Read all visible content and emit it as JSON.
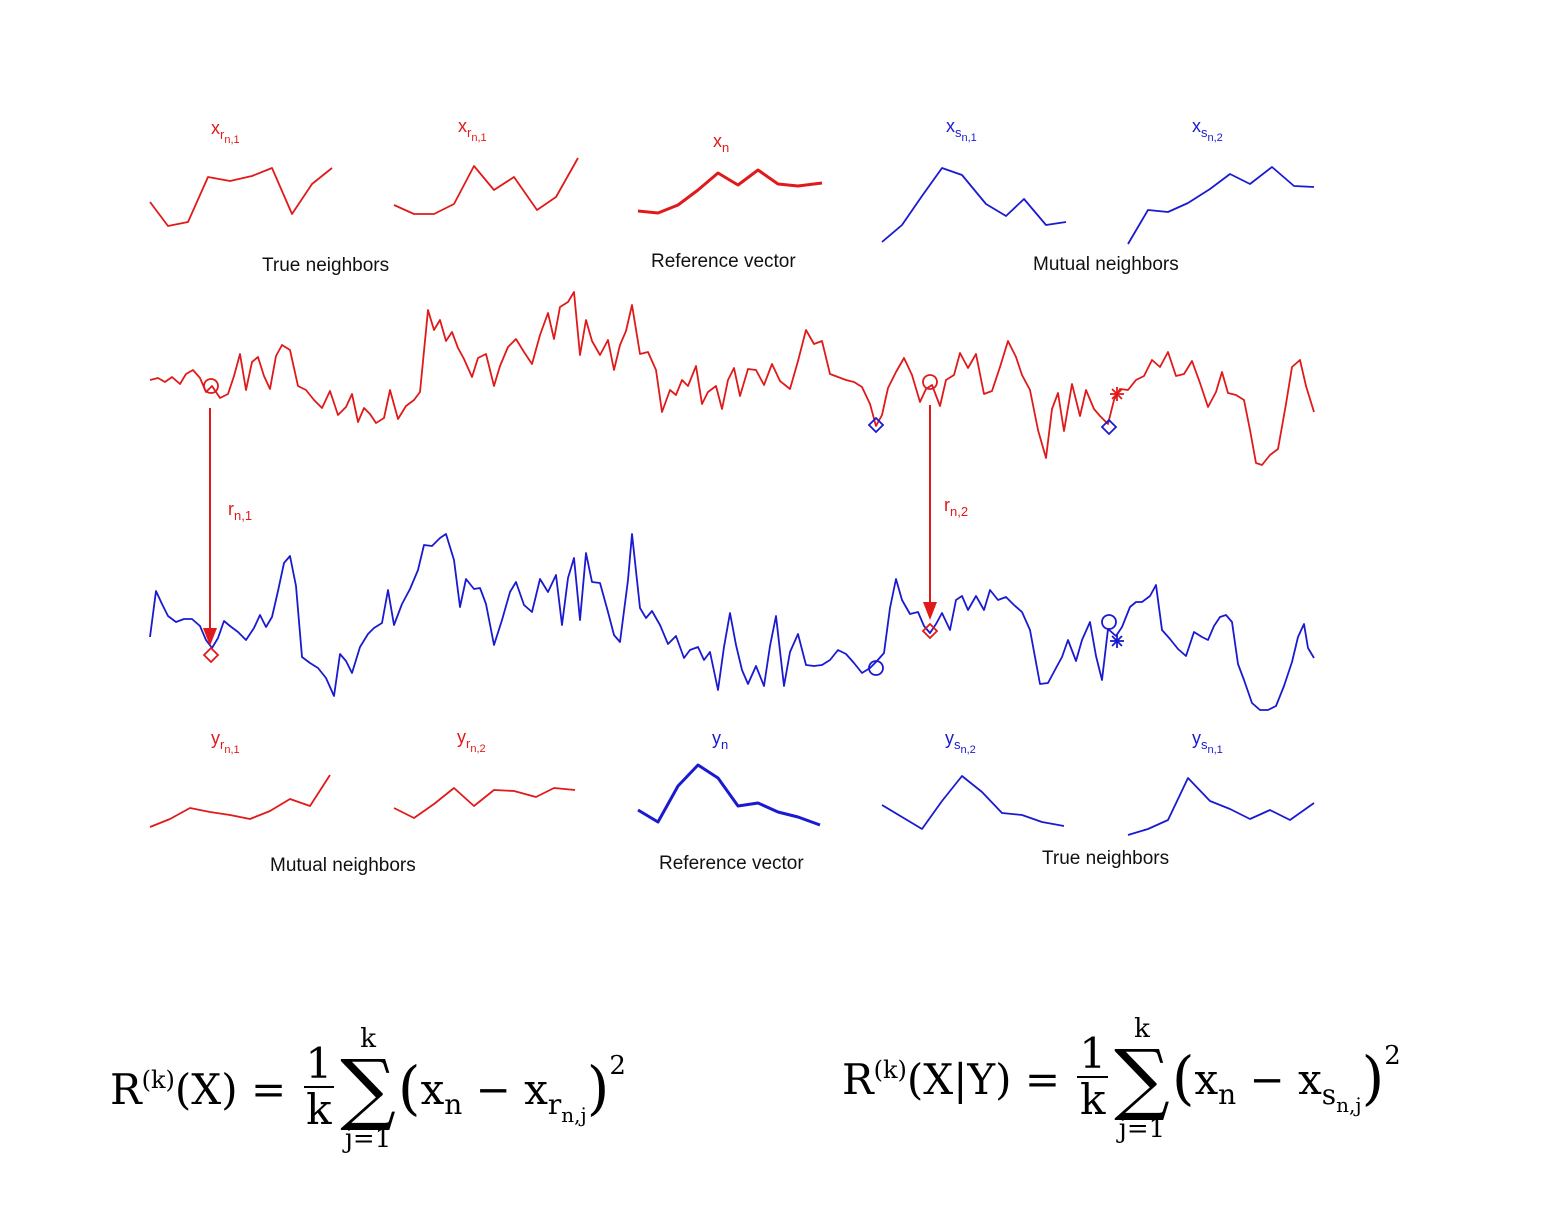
{
  "top_row": {
    "symbols": [
      {
        "base": "x",
        "sub": "r",
        "subsub": "n,1",
        "color": "red"
      },
      {
        "base": "x",
        "sub": "r",
        "subsub": "n,1",
        "color": "red"
      },
      {
        "base": "x",
        "sub": "n",
        "subsub": "",
        "color": "red"
      },
      {
        "base": "x",
        "sub": "s",
        "subsub": "n,1",
        "color": "blue"
      },
      {
        "base": "x",
        "sub": "s",
        "subsub": "n,2",
        "color": "blue"
      }
    ],
    "captions": [
      "True neighbors",
      "Reference vector",
      "Mutual neighbors"
    ]
  },
  "bottom_row": {
    "symbols": [
      {
        "base": "y",
        "sub": "r",
        "subsub": "n,1",
        "color": "red"
      },
      {
        "base": "y",
        "sub": "r",
        "subsub": "n,2",
        "color": "red"
      },
      {
        "base": "y",
        "sub": "n",
        "subsub": "",
        "color": "blue"
      },
      {
        "base": "y",
        "sub": "s",
        "subsub": "n,2",
        "color": "blue"
      },
      {
        "base": "y",
        "sub": "s",
        "subsub": "n,1",
        "color": "blue"
      }
    ],
    "captions": [
      "Mutual neighbors",
      "Reference vector",
      "True neighbors"
    ]
  },
  "arrows": [
    {
      "base": "r",
      "sub": "n,1"
    },
    {
      "base": "r",
      "sub": "n,2"
    }
  ],
  "equations": {
    "left": {
      "lhs": "R",
      "sup": "(k)",
      "arg": "(X)",
      "eq": "=",
      "num": "1",
      "den": "k",
      "sum_top": "k",
      "sum_bottom": "j=1",
      "term1": "x",
      "term1_sub": "n",
      "minus": "−",
      "term2": "x",
      "term2_sub": "r",
      "term2_subsub": "n,j",
      "power": "2"
    },
    "right": {
      "lhs": "R",
      "sup": "(k)",
      "arg": "(X|Y)",
      "eq": "=",
      "num": "1",
      "den": "k",
      "sum_top": "k",
      "sum_bottom": "j=1",
      "term1": "x",
      "term1_sub": "n",
      "minus": "−",
      "term2": "x",
      "term2_sub": "s",
      "term2_subsub": "n,j",
      "power": "2"
    }
  },
  "colors": {
    "red": "#e01a1a",
    "blue": "#1a1ad0"
  }
}
